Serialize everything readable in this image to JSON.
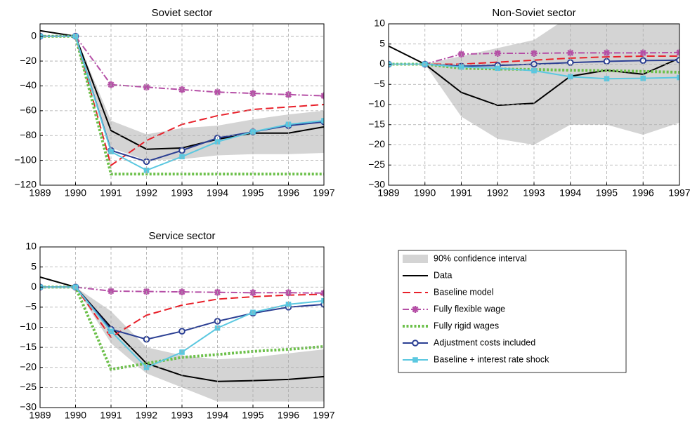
{
  "chart_data": [
    {
      "type": "line",
      "title": "Soviet sector",
      "x": [
        1989,
        1990,
        1991,
        1992,
        1993,
        1994,
        1995,
        1996,
        1997
      ],
      "xlim": [
        1989,
        1997
      ],
      "xticks": [
        1989,
        1990,
        1991,
        1992,
        1993,
        1994,
        1995,
        1996,
        1997
      ],
      "ylim": [
        -120,
        10
      ],
      "yticks": [
        0,
        {
          "value": -20,
          "label": "−20"
        },
        {
          "value": -40,
          "label": "−40"
        },
        {
          "value": -60,
          "label": "−60"
        },
        {
          "value": -80,
          "label": "−80"
        },
        {
          "value": -100,
          "label": "−100"
        },
        {
          "value": -120,
          "label": "−120"
        }
      ],
      "grid": true,
      "band": {
        "name": "90% confidence interval",
        "color": "#d4d4d4",
        "upper": [
          null,
          0,
          -68,
          -79,
          -74,
          -72,
          -67,
          -63,
          -60
        ],
        "lower": [
          null,
          0,
          -90,
          -100,
          -99,
          -96,
          -95,
          -95,
          -94
        ]
      },
      "series": [
        {
          "name": "Data",
          "color": "#000000",
          "dash": "solid",
          "marker": "none",
          "values": [
            4.5,
            0,
            -76,
            -91,
            -90,
            -83,
            -78,
            -78,
            -73
          ]
        },
        {
          "name": "Baseline model",
          "color": "#e8202a",
          "dash": "dashed",
          "marker": "none",
          "values": [
            0,
            0,
            -104,
            -84,
            -71,
            -64,
            -59,
            -57,
            -55
          ]
        },
        {
          "name": "Fully flexible wage",
          "color": "#b54fa6",
          "dash": "dashdot",
          "marker": "star",
          "values": [
            0,
            0,
            -39,
            -41,
            -43,
            -45,
            -46,
            -47,
            -48
          ]
        },
        {
          "name": "Fully rigid wages",
          "color": "#6cc04a",
          "dash": "dotted",
          "marker": "none",
          "values": [
            0,
            0,
            -111,
            -111,
            -111,
            -111,
            -111,
            -111,
            -111
          ]
        },
        {
          "name": "Adjustment costs included",
          "color": "#2b3f93",
          "dash": "solid",
          "marker": "circle",
          "values": [
            0,
            0,
            -92,
            -101,
            -92,
            -82,
            -77,
            -72,
            -69
          ]
        },
        {
          "name": "Baseline + interest rate shock",
          "color": "#5bc8e0",
          "dash": "solid",
          "marker": "square",
          "values": [
            0,
            0,
            -93,
            -108,
            -97,
            -85,
            -77,
            -71,
            -68
          ]
        }
      ]
    },
    {
      "type": "line",
      "title": "Non-Soviet sector",
      "x": [
        1989,
        1990,
        1991,
        1992,
        1993,
        1994,
        1995,
        1996,
        1997
      ],
      "xlim": [
        1989,
        1997
      ],
      "xticks": [
        1989,
        1990,
        1991,
        1992,
        1993,
        1994,
        1995,
        1996,
        1997
      ],
      "ylim": [
        -30,
        10
      ],
      "yticks": [
        10,
        5,
        0,
        {
          "value": -5,
          "label": "−5"
        },
        {
          "value": -10,
          "label": "−10"
        },
        {
          "value": -15,
          "label": "−15"
        },
        {
          "value": -20,
          "label": "−20"
        },
        {
          "value": -25,
          "label": "−25"
        },
        {
          "value": -30,
          "label": "−30"
        }
      ],
      "grid": true,
      "band": {
        "color": "#d4d4d4",
        "upper": [
          null,
          0,
          2,
          4,
          6,
          12,
          14,
          15,
          16
        ],
        "lower": [
          null,
          0,
          -13,
          -18.5,
          -20,
          -15,
          -15,
          -17.5,
          -14.5
        ]
      },
      "series": [
        {
          "color": "#000000",
          "dash": "solid",
          "marker": "none",
          "values": [
            4.5,
            0,
            -7,
            -10.2,
            -9.7,
            -3,
            -1.5,
            -2.5,
            1.5
          ]
        },
        {
          "color": "#e8202a",
          "dash": "dashed",
          "marker": "none",
          "values": [
            0,
            0,
            0,
            0.5,
            1,
            1.5,
            1.8,
            2,
            2
          ]
        },
        {
          "color": "#b54fa6",
          "dash": "dashdot",
          "marker": "star",
          "values": [
            0,
            0,
            2.5,
            2.7,
            2.7,
            2.8,
            2.8,
            2.8,
            2.9
          ]
        },
        {
          "color": "#6cc04a",
          "dash": "dotted",
          "marker": "none",
          "values": [
            0,
            0,
            -1,
            -1.2,
            -1.3,
            -1.5,
            -1.6,
            -1.8,
            -2
          ]
        },
        {
          "color": "#2b3f93",
          "dash": "solid",
          "marker": "circle",
          "values": [
            0,
            0,
            -0.5,
            -0.3,
            0,
            0.4,
            0.7,
            0.9,
            1
          ]
        },
        {
          "color": "#5bc8e0",
          "dash": "solid",
          "marker": "square",
          "values": [
            0,
            0,
            -0.7,
            -1,
            -1.6,
            -3.1,
            -3.6,
            -3.5,
            -3.3
          ]
        }
      ]
    },
    {
      "type": "line",
      "title": "Service sector",
      "x": [
        1989,
        1990,
        1991,
        1992,
        1993,
        1994,
        1995,
        1996,
        1997
      ],
      "xlim": [
        1989,
        1997
      ],
      "xticks": [
        1989,
        1990,
        1991,
        1992,
        1993,
        1994,
        1995,
        1996,
        1997
      ],
      "ylim": [
        -30,
        10
      ],
      "yticks": [
        10,
        5,
        0,
        {
          "value": -5,
          "label": "−5"
        },
        {
          "value": -10,
          "label": "−10"
        },
        {
          "value": -15,
          "label": "−15"
        },
        {
          "value": -20,
          "label": "−20"
        },
        {
          "value": -25,
          "label": "−25"
        },
        {
          "value": -30,
          "label": "−30"
        }
      ],
      "grid": true,
      "band": {
        "color": "#d4d4d4",
        "upper": [
          null,
          0,
          -6,
          -15,
          -17,
          -18,
          -17.5,
          -16.5,
          -15.5
        ],
        "lower": [
          null,
          0,
          -14,
          -21.5,
          -25,
          -28.5,
          -28.5,
          -28.5,
          -28.5
        ]
      },
      "series": [
        {
          "color": "#000000",
          "dash": "solid",
          "marker": "none",
          "values": [
            2.5,
            0,
            -10,
            -19,
            -22,
            -23.5,
            -23.3,
            -23,
            -22.3
          ]
        },
        {
          "color": "#e8202a",
          "dash": "dashed",
          "marker": "none",
          "values": [
            0,
            0,
            -12.5,
            -7,
            -4.5,
            -3,
            -2.4,
            -2,
            -1.8
          ]
        },
        {
          "color": "#b54fa6",
          "dash": "dashdot",
          "marker": "star",
          "values": [
            0,
            0,
            -1,
            -1.1,
            -1.2,
            -1.3,
            -1.4,
            -1.4,
            -1.5
          ]
        },
        {
          "color": "#6cc04a",
          "dash": "dotted",
          "marker": "none",
          "values": [
            0,
            0,
            -20.5,
            -19,
            -17.5,
            -16.8,
            -16,
            -15.5,
            -14.8
          ]
        },
        {
          "color": "#2b3f93",
          "dash": "solid",
          "marker": "circle",
          "values": [
            0,
            0,
            -10.5,
            -13,
            -11,
            -8.5,
            -6.5,
            -5,
            -4.3
          ]
        },
        {
          "color": "#5bc8e0",
          "dash": "solid",
          "marker": "square",
          "values": [
            0,
            0,
            -11,
            -20,
            -16.2,
            -10.2,
            -6.3,
            -4.3,
            -3.4
          ]
        }
      ]
    }
  ]
}
